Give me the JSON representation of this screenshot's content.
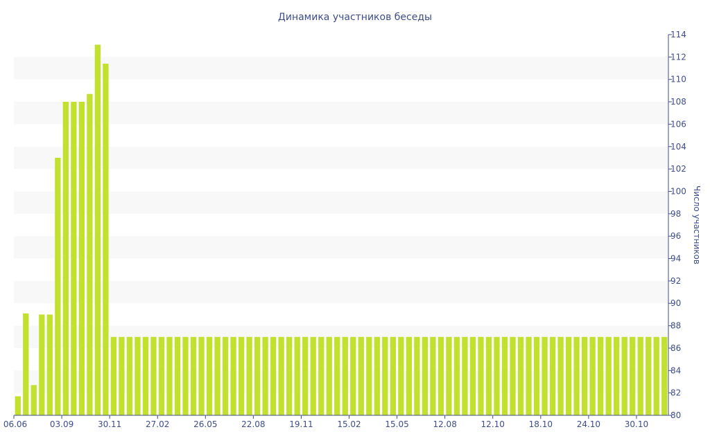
{
  "chart_data": {
    "type": "bar",
    "title": "Динамика участников беседы",
    "ylabel": "Число участников",
    "xlabel": "",
    "ylim": [
      80,
      114
    ],
    "y_ticks": [
      80,
      82,
      84,
      86,
      88,
      90,
      92,
      94,
      96,
      98,
      100,
      102,
      104,
      106,
      108,
      110,
      112,
      114
    ],
    "y_axis_position": "right",
    "grid": "alternating horizontal bands",
    "x_tick_labels": [
      "06.06",
      "03.09",
      "30.11",
      "27.02",
      "26.05",
      "22.08",
      "19.11",
      "15.02",
      "15.05",
      "12.08",
      "12.10",
      "18.10",
      "24.10",
      "30.10"
    ],
    "values": [
      81.7,
      89.1,
      82.7,
      89.0,
      89.0,
      103.0,
      108.0,
      108.0,
      108.0,
      108.7,
      113.1,
      111.4,
      87,
      87,
      87,
      87,
      87,
      87,
      87,
      87,
      87,
      87,
      87,
      87,
      87,
      87,
      87,
      87,
      87,
      87,
      87,
      87,
      87,
      87,
      87,
      87,
      87,
      87,
      87,
      87,
      87,
      87,
      87,
      87,
      87,
      87,
      87,
      87,
      87,
      87,
      87,
      87,
      87,
      87,
      87,
      87,
      87,
      87,
      87,
      87,
      87,
      87,
      87,
      87,
      87,
      87,
      87,
      87,
      87,
      87,
      87,
      87,
      87,
      87,
      87,
      87,
      87,
      87,
      87,
      87,
      87,
      87
    ],
    "colors": {
      "bar": "#c2e02e",
      "text": "#3e4d8a",
      "band": "#f8f8f8"
    }
  }
}
